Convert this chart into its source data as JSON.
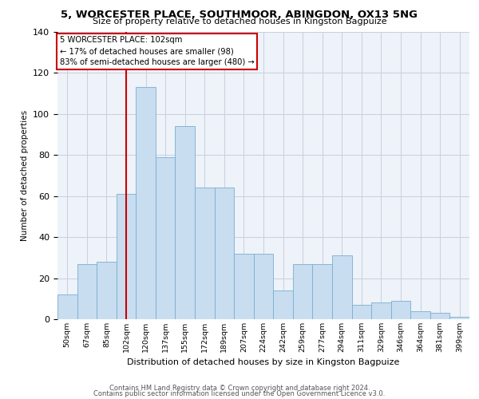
{
  "title1": "5, WORCESTER PLACE, SOUTHMOOR, ABINGDON, OX13 5NG",
  "title2": "Size of property relative to detached houses in Kingston Bagpuize",
  "xlabel": "Distribution of detached houses by size in Kingston Bagpuize",
  "ylabel": "Number of detached properties",
  "bar_labels": [
    "50sqm",
    "67sqm",
    "85sqm",
    "102sqm",
    "120sqm",
    "137sqm",
    "155sqm",
    "172sqm",
    "189sqm",
    "207sqm",
    "224sqm",
    "242sqm",
    "259sqm",
    "277sqm",
    "294sqm",
    "311sqm",
    "329sqm",
    "346sqm",
    "364sqm",
    "381sqm",
    "399sqm"
  ],
  "bar_values": [
    12,
    27,
    28,
    61,
    113,
    79,
    94,
    64,
    64,
    32,
    32,
    14,
    27,
    27,
    31,
    7,
    8,
    9,
    4,
    3,
    1
  ],
  "bar_color": "#c8ddf0",
  "bar_edge_color": "#7aaed0",
  "vline_color": "#cc0000",
  "annotation_title": "5 WORCESTER PLACE: 102sqm",
  "annotation_line1": "← 17% of detached houses are smaller (98)",
  "annotation_line2": "83% of semi-detached houses are larger (480) →",
  "ylim": [
    0,
    140
  ],
  "footer1": "Contains HM Land Registry data © Crown copyright and database right 2024.",
  "footer2": "Contains public sector information licensed under the Open Government Licence v3.0.",
  "bg_color": "#eef2f9",
  "grid_color": "#c8d0de"
}
